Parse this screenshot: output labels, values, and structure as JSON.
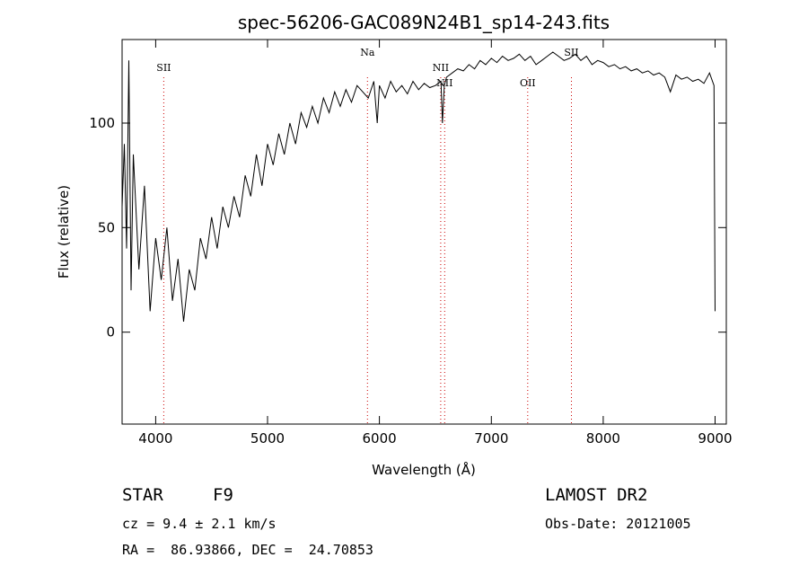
{
  "chart_data": {
    "type": "line",
    "title": "spec-56206-GAC089N24B1_sp14-243.fits",
    "xlabel": "Wavelength (Å)",
    "ylabel": "Flux (relative)",
    "xlim": [
      3700,
      9100
    ],
    "ylim": [
      -44,
      140
    ],
    "x_ticks": [
      4000,
      5000,
      6000,
      7000,
      8000,
      9000
    ],
    "y_ticks": [
      0,
      50,
      100
    ],
    "grid": false,
    "series": [
      {
        "x": [
          3700,
          3720,
          3740,
          3760,
          3780,
          3800,
          3850,
          3900,
          3950,
          4000,
          4050,
          4100,
          4150,
          4200,
          4250,
          4300,
          4350,
          4400,
          4450,
          4500,
          4550,
          4600,
          4650,
          4700,
          4750,
          4800,
          4850,
          4900,
          4950,
          5000,
          5050,
          5100,
          5150,
          5200,
          5250,
          5300,
          5350,
          5400,
          5450,
          5500,
          5550,
          5600,
          5650,
          5700,
          5750,
          5800,
          5850,
          5900,
          5950,
          5980,
          6000,
          6050,
          6100,
          6150,
          6200,
          6250,
          6300,
          6350,
          6400,
          6450,
          6500,
          6550,
          6563,
          6580,
          6600,
          6650,
          6700,
          6750,
          6800,
          6850,
          6900,
          6950,
          7000,
          7050,
          7100,
          7150,
          7200,
          7250,
          7300,
          7350,
          7400,
          7450,
          7500,
          7550,
          7600,
          7650,
          7700,
          7750,
          7800,
          7850,
          7900,
          7950,
          8000,
          8050,
          8100,
          8150,
          8200,
          8250,
          8300,
          8350,
          8400,
          8450,
          8500,
          8550,
          8600,
          8650,
          8700,
          8750,
          8800,
          8850,
          8900,
          8950,
          8990,
          9000
        ],
        "y": [
          60,
          90,
          40,
          130,
          20,
          85,
          30,
          70,
          10,
          45,
          25,
          50,
          15,
          35,
          5,
          30,
          20,
          45,
          35,
          55,
          40,
          60,
          50,
          65,
          55,
          75,
          65,
          85,
          70,
          90,
          80,
          95,
          85,
          100,
          90,
          105,
          98,
          108,
          100,
          112,
          105,
          115,
          108,
          116,
          110,
          118,
          115,
          112,
          120,
          100,
          118,
          112,
          120,
          115,
          118,
          114,
          120,
          116,
          119,
          117,
          118,
          120,
          100,
          118,
          122,
          124,
          126,
          125,
          128,
          126,
          130,
          128,
          131,
          129,
          132,
          130,
          131,
          133,
          130,
          132,
          128,
          130,
          132,
          134,
          132,
          130,
          131,
          133,
          130,
          132,
          128,
          130,
          129,
          127,
          128,
          126,
          127,
          125,
          126,
          124,
          125,
          123,
          124,
          122,
          115,
          123,
          121,
          122,
          120,
          121,
          119,
          124,
          118,
          10
        ]
      }
    ],
    "lines": [
      {
        "label": "SII",
        "x": 4072,
        "label_pos": "upper"
      },
      {
        "label": "Na",
        "x": 5893,
        "label_pos": "top"
      },
      {
        "label": "NII",
        "x": 6548,
        "label_pos": "upper"
      },
      {
        "label": "NII",
        "x": 6583,
        "label_pos": "lower"
      },
      {
        "label": "OII",
        "x": 7325,
        "label_pos": "lower"
      },
      {
        "label": "SII",
        "x": 7716,
        "label_pos": "top"
      }
    ],
    "line_color": "#000000",
    "marker_color": "#cc0000"
  },
  "info": {
    "object_type": "STAR",
    "subclass": "F9",
    "survey": "LAMOST DR2",
    "redshift": "cz = 9.4 ± 2.1 km/s",
    "obs_date": "Obs-Date: 20121005",
    "coords": "RA =  86.93866, DEC =  24.70853"
  }
}
